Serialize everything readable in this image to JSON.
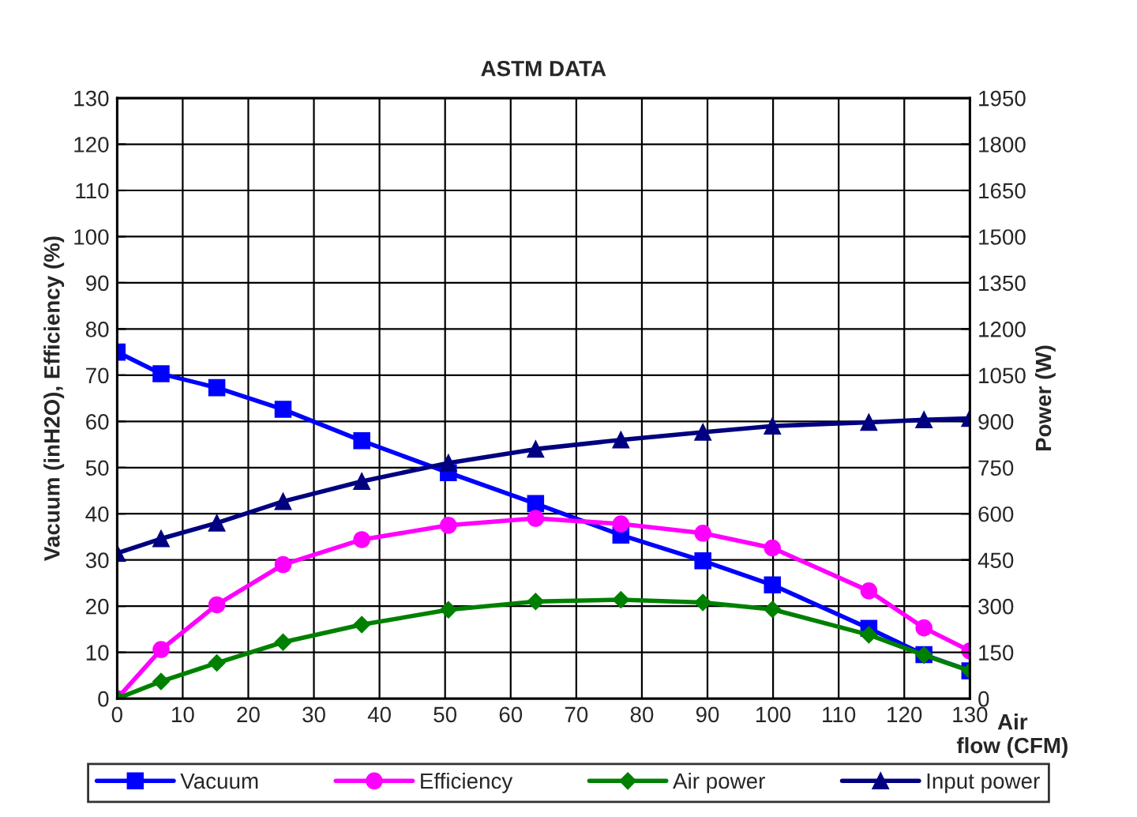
{
  "chart_data": {
    "type": "line",
    "title": "ASTM DATA",
    "xlabel": "Air\nflow (CFM)",
    "ylabel": "Vacuum (inH2O), Efficiency (%)",
    "y2label": "Power (W)",
    "x": [
      0,
      6.7,
      15.2,
      25.3,
      37.3,
      50.5,
      63.8,
      76.8,
      89.3,
      99.9,
      114.6,
      123.0,
      130
    ],
    "series": [
      {
        "name": "Vacuum",
        "color": "#0000ff",
        "marker": "square",
        "values": [
          75,
          70.3,
          67.3,
          62.6,
          55.8,
          48.9,
          42.2,
          35.4,
          29.8,
          24.6,
          15.2,
          9.5,
          6.0
        ]
      },
      {
        "name": "Efficiency",
        "color": "#ff00ff",
        "marker": "circle",
        "values": [
          0,
          10.6,
          20.3,
          29.0,
          34.4,
          37.5,
          39.0,
          37.8,
          35.8,
          32.6,
          23.3,
          15.3,
          10.3
        ]
      },
      {
        "name": "Air power",
        "color": "#008000",
        "marker": "diamond",
        "values": [
          0,
          3.7,
          7.7,
          12.2,
          16.0,
          19.2,
          21.0,
          21.4,
          20.8,
          19.3,
          13.8,
          9.4,
          6.0
        ]
      },
      {
        "name": "Input power",
        "color": "#000080",
        "marker": "triangle",
        "axis": "y2",
        "values": [
          472,
          519,
          570,
          640,
          705,
          765,
          810,
          840,
          865,
          885,
          897,
          905,
          910
        ]
      }
    ],
    "xlim": [
      0,
      130
    ],
    "xticks": [
      0,
      10,
      20,
      30,
      40,
      50,
      60,
      70,
      80,
      90,
      100,
      110,
      120,
      130
    ],
    "ylim": [
      0,
      130
    ],
    "yticks": [
      0,
      10,
      20,
      30,
      40,
      50,
      60,
      70,
      80,
      90,
      100,
      110,
      120,
      130
    ],
    "y2lim": [
      0,
      1950
    ],
    "y2ticks": [
      0,
      150,
      300,
      450,
      600,
      750,
      900,
      1050,
      1200,
      1350,
      1500,
      1650,
      1800,
      1950
    ],
    "grid": true,
    "legend": "bottom",
    "line_style": "solid"
  }
}
